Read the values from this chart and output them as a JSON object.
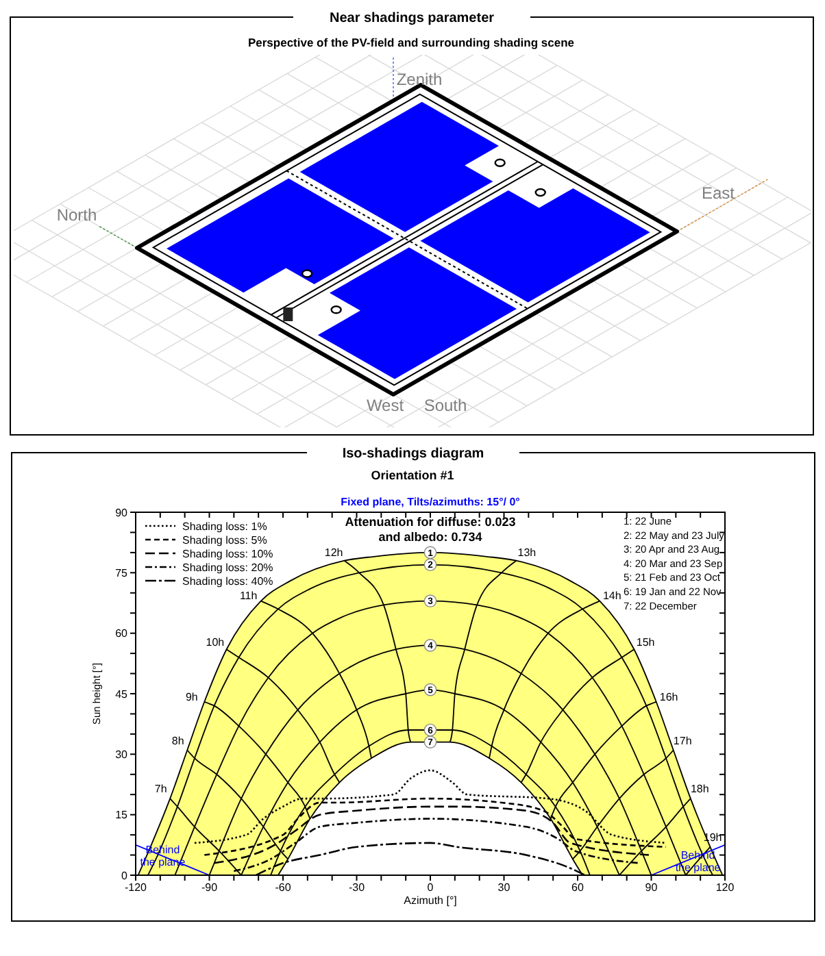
{
  "chart_data": [
    {
      "type": "other",
      "title": "Near shadings parameter",
      "subtitle": "Perspective of the PV-field and surrounding shading scene",
      "annotations": [
        "Zenith",
        "North",
        "East",
        "West",
        "South"
      ]
    },
    {
      "type": "line",
      "title": "Iso-shadings diagram",
      "subtitle": "Orientation #1",
      "xlabel": "Azimuth [°]",
      "ylabel": "Sun height [°]",
      "xlim": [
        -120,
        120
      ],
      "xticks": [
        -120,
        {
          "value": -110,
          "label": null
        },
        {
          "value": -100,
          "label": null
        },
        -90,
        {
          "value": -80,
          "label": null
        },
        {
          "value": -70,
          "label": null
        },
        -60,
        {
          "value": -50,
          "label": null
        },
        {
          "value": -40,
          "label": null
        },
        -30,
        {
          "value": -20,
          "label": null
        },
        {
          "value": -10,
          "label": null
        },
        0,
        {
          "value": 10,
          "label": null
        },
        {
          "value": 20,
          "label": null
        },
        30,
        {
          "value": 40,
          "label": null
        },
        {
          "value": 50,
          "label": null
        },
        60,
        {
          "value": 70,
          "label": null
        },
        {
          "value": 80,
          "label": null
        },
        90,
        {
          "value": 100,
          "label": null
        },
        {
          "value": 110,
          "label": null
        },
        120
      ],
      "ylim": [
        0,
        90
      ],
      "yticks": [
        0,
        {
          "value": 5,
          "label": null
        },
        {
          "value": 10,
          "label": null
        },
        15,
        {
          "value": 20,
          "label": null
        },
        {
          "value": 25,
          "label": null
        },
        30,
        {
          "value": 35,
          "label": null
        },
        {
          "value": 40,
          "label": null
        },
        45,
        {
          "value": 50,
          "label": null
        },
        {
          "value": 55,
          "label": null
        },
        60,
        {
          "value": 65,
          "label": null
        },
        {
          "value": 70,
          "label": null
        },
        75,
        {
          "value": 80,
          "label": null
        },
        {
          "value": 85,
          "label": null
        },
        90
      ],
      "legend": "top left",
      "annotations": [
        "Fixed plane, Tilts/azimuths: 15°/ 0°",
        "Attenuation for diffuse: 0.023",
        "and albedo: 0.734",
        "1: 22 June",
        "2: 22 May and 23 July",
        "3: 20 Apr and 23 Aug",
        "4: 20 Mar and 23 Sep",
        "5: 21 Feb and 23 Oct",
        "6: 19 Jan and 22 Nov",
        "7: 22 December",
        {
          "text": "Behind the plane",
          "x": -109,
          "y": 5
        },
        {
          "text": "Behind the plane",
          "x": 109,
          "y": 3.5
        }
      ],
      "series": [
        {
          "name": "1",
          "type": "area",
          "color": "#ffff80",
          "x": [
            -119,
            -114,
            -106,
            -99,
            -92,
            -83,
            -69,
            -57,
            -35,
            -23,
            0,
            23,
            35,
            57,
            69,
            83,
            92,
            99,
            106,
            114,
            119
          ],
          "values": [
            0,
            7,
            19,
            31,
            43,
            56,
            68,
            73,
            78,
            79,
            80,
            79,
            78,
            73,
            68,
            56,
            43,
            31,
            19,
            7,
            0
          ]
        },
        {
          "name": "2",
          "color": "#000000",
          "x": [
            -115,
            -111,
            -103,
            -96,
            -88,
            -78,
            -62,
            -49,
            -29,
            0,
            29,
            49,
            62,
            78,
            88,
            96,
            103,
            111,
            115
          ],
          "values": [
            0,
            5,
            17,
            29,
            42,
            54,
            66,
            71,
            75,
            77,
            75,
            71,
            66,
            54,
            42,
            29,
            17,
            5,
            0
          ]
        },
        {
          "name": "3",
          "color": "#000000",
          "x": [
            -104,
            -96,
            -87,
            -78,
            -66,
            -48,
            -36,
            -19,
            0,
            19,
            36,
            48,
            66,
            78,
            87,
            96,
            104
          ],
          "values": [
            0,
            12,
            25,
            37,
            49,
            60,
            64,
            67,
            68,
            67,
            64,
            60,
            49,
            37,
            25,
            12,
            0
          ]
        },
        {
          "name": "4",
          "color": "#000000",
          "x": [
            -90,
            -86,
            -77,
            -67,
            -54,
            -37,
            -14,
            0,
            14,
            37,
            54,
            67,
            77,
            86,
            90
          ],
          "values": [
            0,
            6,
            19,
            30,
            41,
            50,
            56,
            57,
            56,
            50,
            41,
            30,
            19,
            6,
            0
          ]
        },
        {
          "name": "5",
          "color": "#000000",
          "x": [
            -77,
            -68,
            -58,
            -45,
            -30,
            -10,
            0,
            10,
            30,
            45,
            58,
            68,
            77
          ],
          "values": [
            0,
            12,
            23,
            33,
            41,
            45,
            46,
            45,
            41,
            33,
            23,
            12,
            0
          ]
        },
        {
          "name": "6",
          "color": "#000000",
          "x": [
            -65,
            -61,
            -51,
            -39,
            -25,
            -9,
            0,
            9,
            25,
            39,
            51,
            61,
            65
          ],
          "values": [
            0,
            6,
            17,
            25,
            32,
            36,
            36,
            36,
            32,
            25,
            17,
            6,
            0
          ]
        },
        {
          "name": "7",
          "type": "area",
          "color": "#ffffff",
          "x": [
            -62,
            -58,
            -49,
            -37,
            -24,
            -8,
            0,
            8,
            24,
            37,
            49,
            58,
            62
          ],
          "values": [
            0,
            4,
            14,
            23,
            29,
            33,
            33,
            33,
            29,
            23,
            14,
            4,
            0
          ]
        },
        {
          "name": "7h",
          "color": "#000000",
          "x": [
            -106,
            -103,
            -96,
            -86,
            -77
          ],
          "values": [
            19,
            17,
            12,
            6,
            0
          ]
        },
        {
          "name": "8h",
          "color": "#000000",
          "x": [
            -99,
            -96,
            -87,
            -77,
            -68,
            -61,
            -58
          ],
          "values": [
            31,
            29,
            25,
            19,
            12,
            6,
            4
          ]
        },
        {
          "name": "9h",
          "color": "#000000",
          "x": [
            -92,
            -88,
            -78,
            -67,
            -58,
            -51,
            -49
          ],
          "values": [
            43,
            42,
            37,
            30,
            23,
            17,
            14
          ]
        },
        {
          "name": "10h",
          "color": "#000000",
          "x": [
            -83,
            -78,
            -66,
            -54,
            -45,
            -39,
            -37
          ],
          "values": [
            56,
            54,
            49,
            41,
            33,
            25,
            23
          ]
        },
        {
          "name": "11h",
          "color": "#000000",
          "x": [
            -69,
            -62,
            -48,
            -37,
            -30,
            -25,
            -24
          ],
          "values": [
            68,
            66,
            60,
            50,
            41,
            32,
            29
          ]
        },
        {
          "name": "12h",
          "color": "#000000",
          "x": [
            -35,
            -29,
            -19,
            -14,
            -10,
            -9,
            -8
          ],
          "values": [
            78,
            75,
            67,
            56,
            45,
            36,
            33
          ]
        },
        {
          "name": "13h",
          "color": "#000000",
          "x": [
            35,
            29,
            19,
            14,
            10,
            9,
            8
          ],
          "values": [
            78,
            75,
            67,
            56,
            45,
            36,
            33
          ]
        },
        {
          "name": "14h",
          "color": "#000000",
          "x": [
            69,
            62,
            48,
            37,
            30,
            25,
            24
          ],
          "values": [
            68,
            66,
            60,
            50,
            41,
            32,
            29
          ]
        },
        {
          "name": "15h",
          "color": "#000000",
          "x": [
            83,
            78,
            66,
            54,
            45,
            39,
            37
          ],
          "values": [
            56,
            54,
            49,
            41,
            33,
            25,
            23
          ]
        },
        {
          "name": "16h",
          "color": "#000000",
          "x": [
            92,
            88,
            78,
            67,
            58,
            51,
            49
          ],
          "values": [
            43,
            42,
            37,
            30,
            23,
            17,
            14
          ]
        },
        {
          "name": "17h",
          "color": "#000000",
          "x": [
            99,
            96,
            87,
            77,
            68,
            61,
            58
          ],
          "values": [
            31,
            29,
            25,
            19,
            12,
            6,
            4
          ]
        },
        {
          "name": "18h",
          "color": "#000000",
          "x": [
            106,
            103,
            96,
            86,
            77
          ],
          "values": [
            19,
            17,
            12,
            6,
            0
          ]
        },
        {
          "name": "19h",
          "color": "#000000",
          "x": [
            114,
            111,
            104
          ],
          "values": [
            7,
            5,
            0
          ]
        },
        {
          "name": "Shading loss: 1%",
          "color": "#000000",
          "line_style": "dotted",
          "x": [
            -96,
            -75,
            -68,
            -60,
            -52,
            -43,
            -15,
            -8,
            0,
            9,
            15,
            48,
            63,
            74,
            96
          ],
          "values": [
            8,
            10,
            14,
            17,
            19,
            19,
            20,
            24,
            26,
            23,
            20,
            19,
            16,
            10,
            8
          ]
        },
        {
          "name": "Shading loss: 5%",
          "color": "#000000",
          "line_style": "dashed",
          "x": [
            -92,
            -60,
            -54,
            -45,
            -38,
            0,
            29,
            46,
            54,
            59,
            96
          ],
          "values": [
            5,
            10,
            14,
            18,
            18,
            19,
            18,
            16,
            12,
            9,
            7
          ]
        },
        {
          "name": "Shading loss: 10%",
          "color": "#000000",
          "line_style": "longdash",
          "x": [
            -88,
            -62,
            -55,
            -45,
            -30,
            0,
            11,
            39,
            50,
            57,
            89
          ],
          "values": [
            3,
            8,
            11,
            15,
            16,
            17,
            17,
            16,
            13,
            8,
            5
          ]
        },
        {
          "name": "Shading loss: 20%",
          "color": "#000000",
          "line_style": "dashdot",
          "x": [
            -80,
            -65,
            -55,
            -45,
            -30,
            0,
            39,
            52,
            59,
            85
          ],
          "values": [
            1,
            4,
            8,
            12,
            13,
            14,
            12,
            9,
            6,
            3
          ]
        },
        {
          "name": "Shading loss: 40%",
          "color": "#000000",
          "line_style": "longdashdot",
          "x": [
            -71,
            -60,
            -45,
            -30,
            0,
            11,
            39,
            56,
            63
          ],
          "values": [
            0,
            3,
            5,
            7,
            8,
            7,
            5,
            2,
            0
          ]
        },
        {
          "color": "#0000ff",
          "x": [
            -120,
            -90,
            0,
            90,
            120
          ],
          "values": [
            7.5,
            0,
            null,
            0,
            7.5
          ]
        }
      ]
    }
  ]
}
